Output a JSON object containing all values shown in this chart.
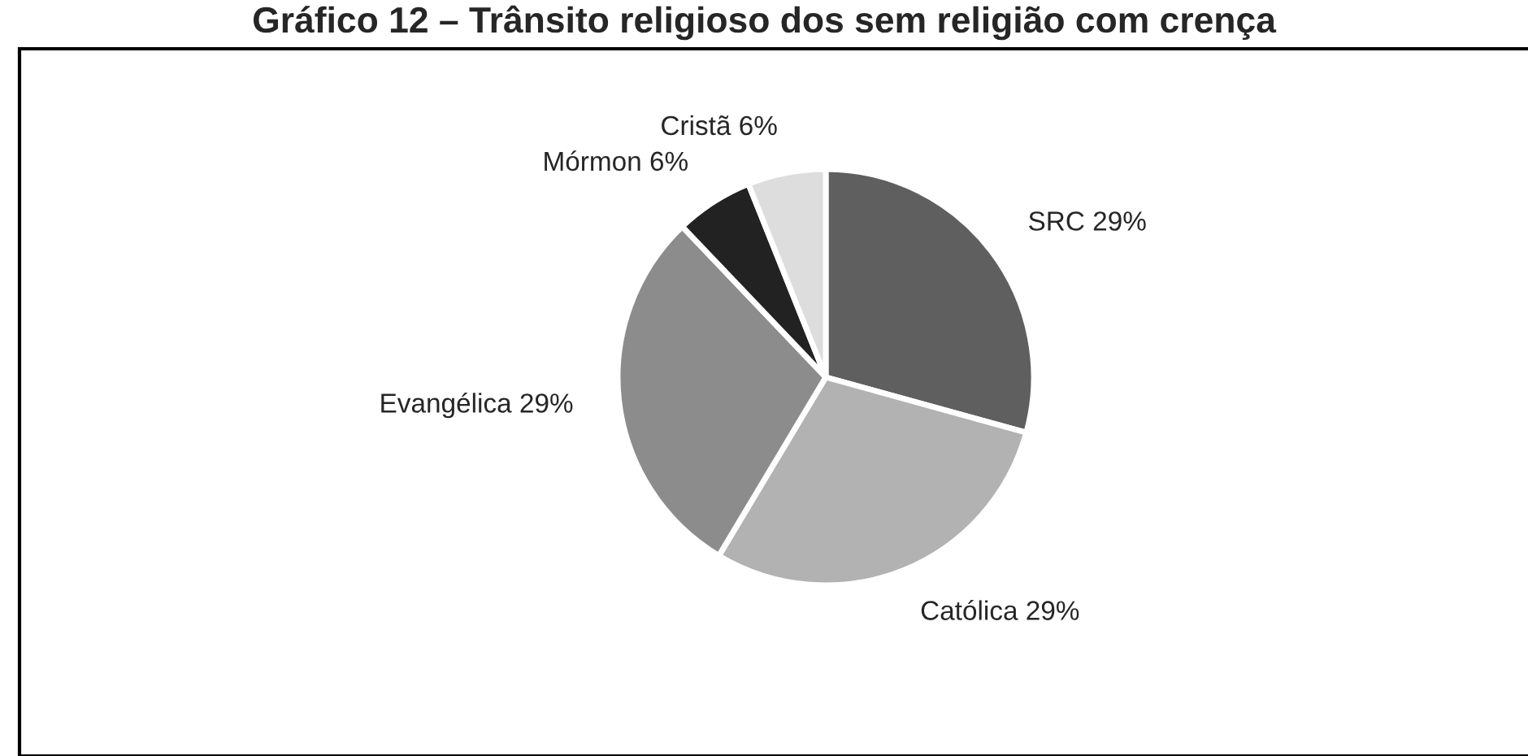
{
  "chart_data": {
    "type": "pie",
    "title": "Gráfico 12 – Trânsito religioso dos sem religião com crença",
    "categories": [
      "SRC",
      "Católica",
      "Evangélica",
      "Mórmon",
      "Cristã"
    ],
    "values": [
      29,
      29,
      29,
      6,
      6
    ],
    "value_labels": [
      "29%",
      "29%",
      "29%",
      "6%",
      "6%"
    ],
    "colors": [
      "#5f5f5f",
      "#b2b2b2",
      "#8c8c8c",
      "#222222",
      "#dddddd"
    ],
    "legend": false
  }
}
